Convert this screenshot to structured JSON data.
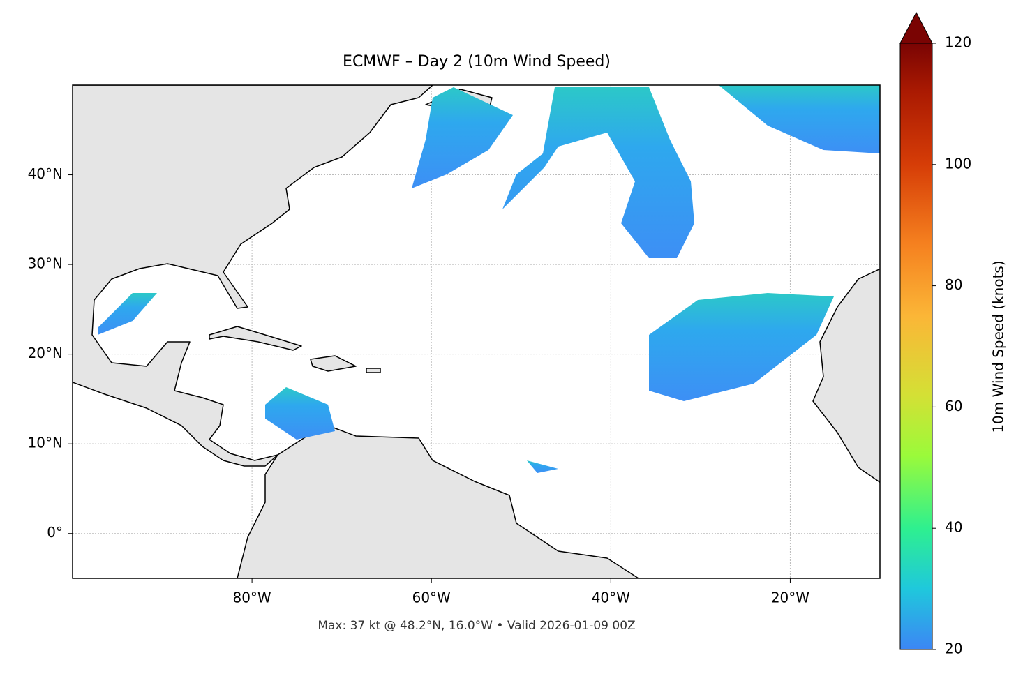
{
  "chart_data": {
    "type": "map",
    "title": "ECMWF – Day 2 (10m Wind Speed)",
    "xlim": [
      -100,
      -10
    ],
    "ylim": [
      -5,
      50
    ],
    "xticks": [
      {
        "value": -80,
        "label": "80°W"
      },
      {
        "value": -60,
        "label": "60°W"
      },
      {
        "value": -40,
        "label": "40°W"
      },
      {
        "value": -20,
        "label": "20°W"
      }
    ],
    "yticks": [
      {
        "value": 0,
        "label": "0°"
      },
      {
        "value": 10,
        "label": "10°N"
      },
      {
        "value": 20,
        "label": "20°N"
      },
      {
        "value": 30,
        "label": "30°N"
      },
      {
        "value": 40,
        "label": "40°N"
      }
    ],
    "grid": true,
    "colorbar": {
      "label": "10m Wind Speed (knots)",
      "lim": [
        20,
        120
      ],
      "ticks": [
        20,
        40,
        60,
        80,
        100,
        120
      ],
      "extend": "max"
    },
    "footnote": "Max: 37 kt @ 48.2°N, 16.0°W • Valid 2026-01-09 00Z"
  }
}
